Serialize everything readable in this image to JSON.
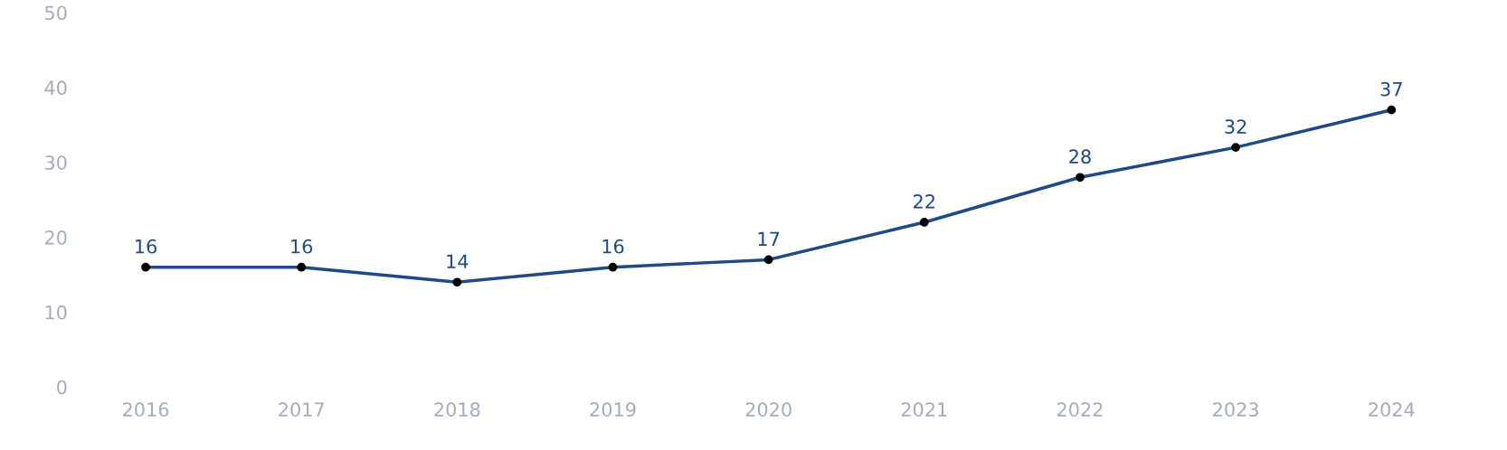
{
  "chart_data": {
    "type": "line",
    "categories": [
      "2016",
      "2017",
      "2018",
      "2019",
      "2020",
      "2021",
      "2022",
      "2023",
      "2024"
    ],
    "series": [
      {
        "color": "#1f4a85",
        "values": [
          16,
          16,
          14,
          16,
          17,
          22,
          28,
          32,
          37
        ]
      }
    ],
    "ylim": [
      0,
      50
    ],
    "yticks": [
      0,
      10,
      20,
      30,
      40,
      50
    ],
    "data_labels": true,
    "grid": false,
    "legend": false,
    "marker": "circle",
    "line_style": "solid"
  }
}
